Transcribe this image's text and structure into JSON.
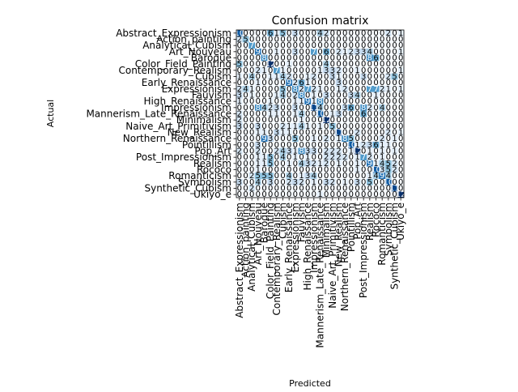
{
  "chart_data": {
    "type": "heatmap",
    "title": "Confusion matrix",
    "xlabel": "Predicted",
    "ylabel": "Actual",
    "labels": [
      "Abstract_Expressionism",
      "Action_painting",
      "Analytical_Cubism",
      "Art_Nouveau",
      "Baroque",
      "Color_Field_Painting",
      "Contemporary_Realism",
      "Cubism",
      "Early_Renaissance",
      "Expressionism",
      "Fauvism",
      "High_Renaissance",
      "Impressionism",
      "Mannerism_Late_Renaissance",
      "Minimalism",
      "Naive_Art_Primitivism",
      "New_Realism",
      "Northern_Renaissance",
      "Pointillism",
      "Pop_Art",
      "Post_Impressionism",
      "Realism",
      "Rococo",
      "Romanticism",
      "Symbolism",
      "Synthetic_Cubism",
      "Ukiyo_e"
    ],
    "matrix": [
      [
        10,
        0,
        0,
        0,
        0,
        6,
        1,
        5,
        0,
        3,
        0,
        0,
        0,
        4,
        2,
        0,
        0,
        0,
        0,
        0,
        0,
        0,
        0,
        0,
        2,
        0,
        1
      ],
      [
        2,
        5,
        0,
        0,
        0,
        0,
        0,
        0,
        0,
        0,
        0,
        0,
        0,
        0,
        0,
        0,
        0,
        0,
        0,
        0,
        0,
        0,
        0,
        0,
        0,
        0,
        0
      ],
      [
        0,
        0,
        7,
        0,
        0,
        0,
        0,
        0,
        0,
        0,
        0,
        0,
        0,
        0,
        0,
        0,
        0,
        0,
        0,
        0,
        0,
        0,
        0,
        0,
        0,
        0,
        0
      ],
      [
        0,
        0,
        0,
        9,
        0,
        0,
        1,
        0,
        0,
        3,
        0,
        0,
        7,
        0,
        6,
        0,
        2,
        1,
        2,
        3,
        3,
        4,
        0,
        0,
        0,
        0,
        1
      ],
      [
        0,
        0,
        0,
        0,
        8,
        0,
        0,
        0,
        0,
        0,
        0,
        0,
        0,
        0,
        0,
        0,
        0,
        0,
        0,
        0,
        0,
        8,
        6,
        0,
        0,
        0,
        0
      ],
      [
        5,
        0,
        0,
        0,
        0,
        12,
        0,
        0,
        1,
        0,
        0,
        0,
        0,
        0,
        4,
        0,
        0,
        0,
        0,
        0,
        0,
        0,
        0,
        0,
        0,
        0,
        0
      ],
      [
        0,
        0,
        0,
        2,
        1,
        0,
        7,
        1,
        0,
        0,
        0,
        0,
        0,
        1,
        3,
        3,
        2,
        0,
        0,
        1,
        0,
        0,
        0,
        0,
        0,
        0,
        1
      ],
      [
        1,
        0,
        4,
        0,
        0,
        1,
        1,
        4,
        2,
        0,
        0,
        1,
        2,
        0,
        0,
        3,
        1,
        0,
        0,
        0,
        3,
        0,
        0,
        0,
        2,
        5,
        0
      ],
      [
        0,
        0,
        0,
        1,
        0,
        0,
        0,
        0,
        9,
        2,
        6,
        1,
        0,
        0,
        0,
        0,
        3,
        0,
        0,
        0,
        0,
        0,
        0,
        0,
        0,
        0,
        0
      ],
      [
        2,
        4,
        1,
        0,
        0,
        0,
        0,
        5,
        0,
        8,
        2,
        7,
        2,
        1,
        0,
        0,
        1,
        2,
        0,
        0,
        0,
        7,
        7,
        2,
        1,
        0,
        1
      ],
      [
        3,
        0,
        1,
        0,
        0,
        0,
        1,
        4,
        0,
        2,
        8,
        0,
        1,
        0,
        3,
        0,
        0,
        0,
        3,
        4,
        0,
        0,
        1,
        0,
        0,
        0,
        0
      ],
      [
        1,
        0,
        0,
        0,
        0,
        1,
        0,
        0,
        0,
        1,
        1,
        9,
        1,
        8,
        0,
        0,
        0,
        0,
        0,
        0,
        0,
        0,
        0,
        0,
        0,
        0,
        0
      ],
      [
        0,
        0,
        0,
        8,
        4,
        2,
        3,
        0,
        0,
        3,
        0,
        0,
        11,
        4,
        0,
        0,
        0,
        3,
        6,
        0,
        8,
        2,
        0,
        4,
        0,
        0,
        0
      ],
      [
        2,
        0,
        0,
        0,
        0,
        1,
        1,
        0,
        0,
        1,
        4,
        0,
        0,
        10,
        0,
        1,
        3,
        0,
        0,
        0,
        6,
        0,
        0,
        0,
        0,
        0,
        0
      ],
      [
        2,
        0,
        0,
        0,
        0,
        0,
        0,
        0,
        0,
        0,
        1,
        0,
        0,
        0,
        12,
        0,
        0,
        0,
        0,
        0,
        0,
        0,
        0,
        0,
        0,
        0,
        0
      ],
      [
        3,
        0,
        0,
        3,
        0,
        0,
        0,
        2,
        1,
        1,
        4,
        1,
        0,
        1,
        0,
        5,
        0,
        0,
        0,
        0,
        0,
        0,
        0,
        0,
        0,
        0,
        0
      ],
      [
        0,
        0,
        0,
        1,
        1,
        0,
        3,
        1,
        1,
        0,
        0,
        0,
        0,
        0,
        0,
        0,
        11,
        0,
        0,
        2,
        0,
        0,
        0,
        0,
        2,
        0,
        1
      ],
      [
        0,
        0,
        0,
        0,
        9,
        3,
        0,
        0,
        0,
        5,
        0,
        0,
        1,
        0,
        2,
        0,
        1,
        8,
        5,
        0,
        0,
        0,
        0,
        2,
        0,
        1,
        0
      ],
      [
        0,
        0,
        0,
        3,
        0,
        0,
        0,
        0,
        0,
        0,
        0,
        0,
        0,
        0,
        0,
        0,
        0,
        0,
        10,
        1,
        2,
        3,
        6,
        1,
        1,
        0,
        0
      ],
      [
        2,
        0,
        0,
        2,
        0,
        0,
        2,
        4,
        3,
        1,
        8,
        3,
        3,
        0,
        2,
        2,
        2,
        0,
        1,
        12,
        0,
        1,
        0,
        1,
        0,
        1,
        0
      ],
      [
        0,
        0,
        0,
        1,
        1,
        5,
        0,
        4,
        0,
        1,
        0,
        1,
        0,
        0,
        2,
        2,
        2,
        2,
        0,
        1,
        7,
        2,
        0,
        1,
        0,
        0,
        0
      ],
      [
        0,
        0,
        0,
        1,
        1,
        5,
        0,
        0,
        1,
        0,
        4,
        3,
        2,
        1,
        2,
        0,
        1,
        0,
        0,
        1,
        0,
        9,
        1,
        4,
        5,
        2,
        0
      ],
      [
        0,
        0,
        0,
        1,
        0,
        0,
        0,
        0,
        0,
        0,
        0,
        0,
        0,
        0,
        0,
        0,
        0,
        0,
        0,
        1,
        0,
        0,
        10,
        3,
        5,
        2,
        0
      ],
      [
        0,
        0,
        2,
        5,
        5,
        5,
        0,
        0,
        4,
        0,
        1,
        3,
        4,
        0,
        0,
        0,
        0,
        0,
        0,
        0,
        0,
        1,
        4,
        9,
        4,
        0,
        0
      ],
      [
        3,
        0,
        0,
        4,
        0,
        3,
        0,
        0,
        2,
        3,
        2,
        0,
        1,
        0,
        3,
        2,
        0,
        1,
        0,
        3,
        0,
        5,
        0,
        0,
        10,
        0,
        0
      ],
      [
        0,
        0,
        2,
        0,
        0,
        0,
        0,
        0,
        0,
        0,
        0,
        0,
        0,
        0,
        0,
        0,
        0,
        0,
        0,
        0,
        0,
        0,
        0,
        0,
        0,
        11,
        0
      ],
      [
        0,
        0,
        0,
        0,
        0,
        0,
        0,
        0,
        0,
        0,
        0,
        0,
        0,
        1,
        0,
        0,
        0,
        0,
        0,
        0,
        0,
        0,
        0,
        0,
        0,
        0,
        12
      ]
    ],
    "colormap": "Blues",
    "value_range": [
      0,
      12
    ],
    "grid": false,
    "legend": "none"
  }
}
